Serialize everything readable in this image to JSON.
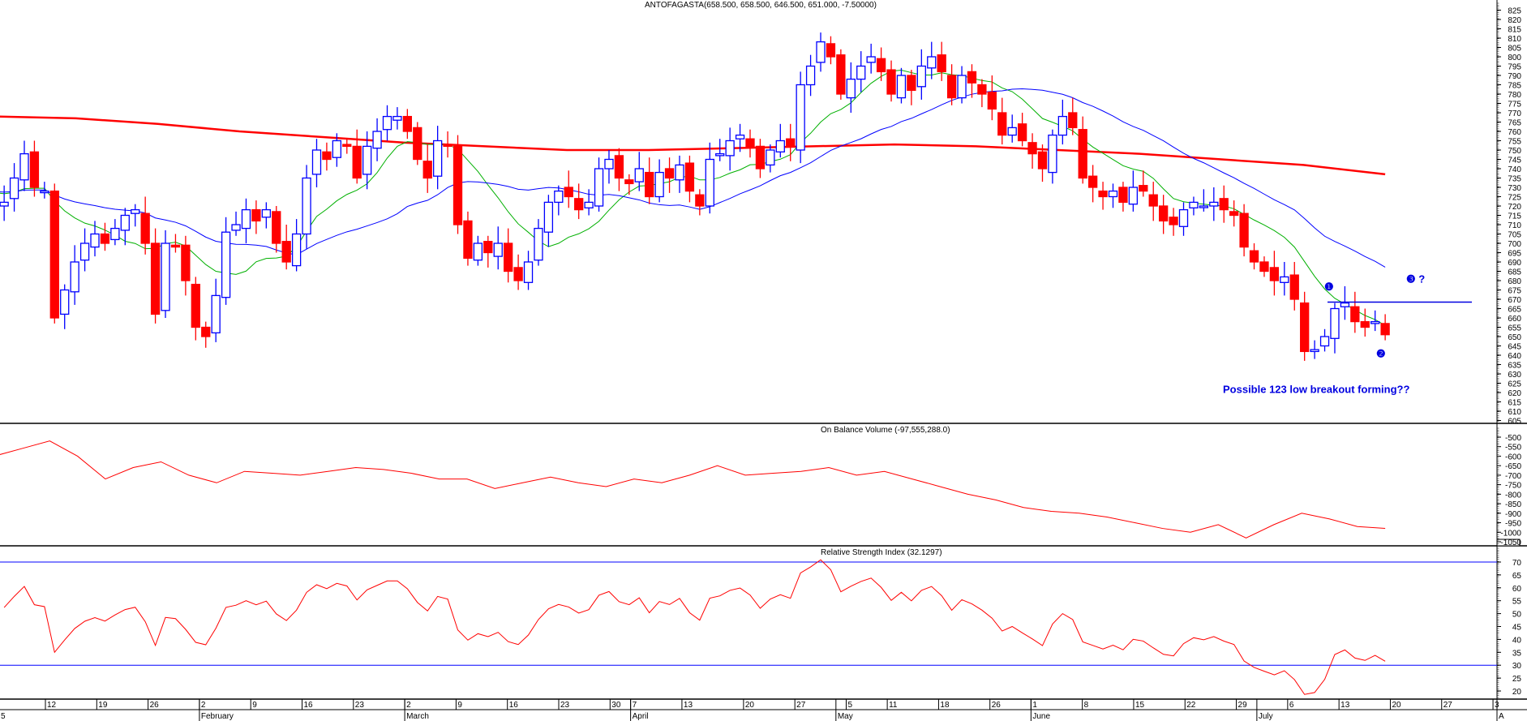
{
  "chart_data": [
    {
      "type": "candlestick",
      "title": "ANTOFAGASTA(658.500, 658.500, 646.500, 651.000, -7.50000)",
      "ylim": [
        605,
        825
      ],
      "y_ticks": [
        825,
        820,
        815,
        810,
        805,
        800,
        795,
        790,
        785,
        780,
        775,
        770,
        765,
        760,
        755,
        750,
        745,
        740,
        735,
        730,
        725,
        720,
        715,
        710,
        705,
        700,
        695,
        690,
        685,
        680,
        675,
        670,
        665,
        660,
        655,
        650,
        645,
        640,
        635,
        630,
        625,
        620,
        615,
        610,
        605
      ],
      "closes": [
        720,
        722,
        735,
        748,
        730,
        728,
        660,
        675,
        690,
        700,
        705,
        700,
        708,
        715,
        718,
        700,
        662,
        700,
        698,
        680,
        655,
        650,
        672,
        706,
        710,
        718,
        712,
        718,
        700,
        690,
        705,
        735,
        750,
        745,
        755,
        752,
        735,
        752,
        760,
        768,
        768,
        760,
        745,
        735,
        755,
        752,
        710,
        692,
        700,
        695,
        700,
        685,
        680,
        690,
        708,
        722,
        728,
        725,
        718,
        722,
        740,
        745,
        735,
        732,
        740,
        725,
        738,
        735,
        742,
        728,
        720,
        745,
        748,
        755,
        758,
        752,
        740,
        750,
        755,
        752,
        785,
        795,
        808,
        800,
        780,
        788,
        795,
        800,
        792,
        780,
        790,
        782,
        795,
        800,
        792,
        778,
        790,
        786,
        780,
        772,
        758,
        762,
        755,
        748,
        740,
        758,
        768,
        762,
        735,
        730,
        725,
        728,
        722,
        730,
        728,
        720,
        712,
        710,
        718,
        722,
        720,
        722,
        718,
        715,
        698,
        690,
        685,
        680,
        682,
        670,
        642,
        643,
        650,
        665,
        668,
        658,
        655,
        658,
        651
      ],
      "series": [
        {
          "name": "MA short",
          "color": "#00b000",
          "period": 10
        },
        {
          "name": "MA medium",
          "color": "#0000ff",
          "period": 25
        },
        {
          "name": "MA long",
          "color": "#ff0000",
          "values": [
            768,
            767,
            764,
            760,
            757,
            754,
            752,
            750,
            750,
            751,
            752,
            753,
            752,
            750,
            748,
            745,
            742,
            737
          ]
        }
      ],
      "annotations": {
        "point1": "❶",
        "point2": "❷",
        "point3": "❸ ?",
        "text": "Possible 123 low breakout forming??",
        "resistance_level": 668.5,
        "point1_price": 677,
        "point2_price": 641,
        "point3_price": 681,
        "text_price": 622
      },
      "colors": {
        "up": "#0000ff",
        "down": "#ff0000"
      }
    },
    {
      "type": "line",
      "title": "On Balance Volume (-97,555,288.0)",
      "ylim": [
        -1050,
        -500
      ],
      "y_ticks": [
        -500,
        -550,
        -600,
        -650,
        -700,
        -750,
        -800,
        -850,
        -900,
        -950,
        -1000,
        -1050
      ],
      "values": [
        -600,
        -560,
        -520,
        -600,
        -720,
        -660,
        -630,
        -700,
        -740,
        -680,
        -690,
        -700,
        -680,
        -660,
        -670,
        -690,
        -720,
        -720,
        -770,
        -740,
        -710,
        -740,
        -760,
        -720,
        -740,
        -700,
        -650,
        -700,
        -690,
        -680,
        -660,
        -700,
        -680,
        -720,
        -760,
        -800,
        -830,
        -870,
        -890,
        -900,
        -920,
        -950,
        -980,
        -1000,
        -960,
        -1030,
        -960,
        -900,
        -930,
        -970,
        -980
      ],
      "color": "#ff0000"
    },
    {
      "type": "line",
      "title": "Relative Strength Index (32.1297)",
      "ylim": [
        15,
        72
      ],
      "y_ticks": [
        70,
        65,
        60,
        55,
        50,
        45,
        40,
        35,
        30,
        25,
        20
      ],
      "levels": [
        30,
        70
      ],
      "rsi_period": 14,
      "color": "#ff0000",
      "level_color": "#0000ff"
    }
  ],
  "x_axis": {
    "days": [
      {
        "label": "12",
        "idx": 0
      },
      {
        "label": "19",
        "idx": 5
      },
      {
        "label": "26",
        "idx": 10
      },
      {
        "label": "2",
        "idx": 15
      },
      {
        "label": "9",
        "idx": 20
      },
      {
        "label": "16",
        "idx": 25
      },
      {
        "label": "23",
        "idx": 30
      },
      {
        "label": "2",
        "idx": 35
      },
      {
        "label": "9",
        "idx": 40
      },
      {
        "label": "16",
        "idx": 45
      },
      {
        "label": "23",
        "idx": 50
      },
      {
        "label": "30",
        "idx": 55
      },
      {
        "label": "7",
        "idx": 57
      },
      {
        "label": "13",
        "idx": 62
      },
      {
        "label": "20",
        "idx": 68
      },
      {
        "label": "27",
        "idx": 73
      },
      {
        "label": "5",
        "idx": 78
      },
      {
        "label": "11",
        "idx": 82
      },
      {
        "label": "18",
        "idx": 87
      },
      {
        "label": "26",
        "idx": 92
      },
      {
        "label": "1",
        "idx": 96
      },
      {
        "label": "8",
        "idx": 101
      },
      {
        "label": "15",
        "idx": 106
      },
      {
        "label": "22",
        "idx": 111
      },
      {
        "label": "29",
        "idx": 116
      },
      {
        "label": "6",
        "idx": 121
      },
      {
        "label": "13",
        "idx": 126
      },
      {
        "label": "20",
        "idx": 131
      },
      {
        "label": "27",
        "idx": 136
      },
      {
        "label": "3",
        "idx": 141
      }
    ],
    "months": [
      {
        "label": "February",
        "idx": 15
      },
      {
        "label": "March",
        "idx": 35
      },
      {
        "label": "April",
        "idx": 57
      },
      {
        "label": "May",
        "idx": 77
      },
      {
        "label": "June",
        "idx": 96
      },
      {
        "label": "July",
        "idx": 118
      }
    ],
    "first_label": "5",
    "last_month_label": "A"
  }
}
